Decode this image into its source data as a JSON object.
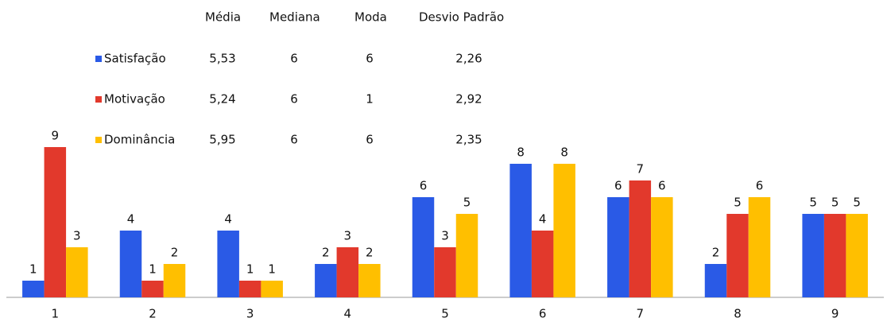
{
  "chart_data": {
    "type": "bar",
    "categories": [
      "1",
      "2",
      "3",
      "4",
      "5",
      "6",
      "7",
      "8",
      "9"
    ],
    "stats_columns": [
      "Média",
      "Mediana",
      "Moda",
      "Desvio Padrão"
    ],
    "series": [
      {
        "name": "Satisfação",
        "color": "#2a5ae6",
        "values": [
          1,
          4,
          4,
          2,
          6,
          8,
          6,
          2,
          5
        ],
        "stats": [
          "5,53",
          "6",
          "6",
          "2,26"
        ]
      },
      {
        "name": "Motivação",
        "color": "#e2392c",
        "values": [
          9,
          1,
          1,
          3,
          3,
          4,
          7,
          5,
          5
        ],
        "stats": [
          "5,24",
          "6",
          "1",
          "2,92"
        ]
      },
      {
        "name": "Dominância",
        "color": "#ffbf00",
        "values": [
          3,
          2,
          1,
          2,
          5,
          8,
          6,
          6,
          5
        ],
        "stats": [
          "5,95",
          "6",
          "6",
          "2,35"
        ]
      }
    ],
    "ylim": [
      0,
      9
    ]
  }
}
